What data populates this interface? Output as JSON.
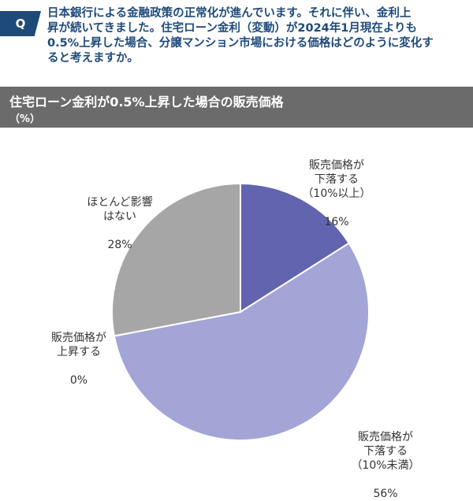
{
  "question": {
    "badge": "Q",
    "text": "日本銀行による金融政策の正常化が進んでいます。それに伴い、金利上\n昇が続いてきました。住宅ローン金利（変動）が2024年1月現在よりも\n0.5%上昇した場合、分譲マンション市場における価格はどのように変化す\nると考えますか。"
  },
  "colors": {
    "question": "#1e4a7a",
    "header_bg": "#6b6b6b",
    "slice_decline_10plus": "#6264b0",
    "slice_decline_under10": "#a2a5d6",
    "slice_rise": "#a2a5d6",
    "slice_no_effect": "#a6a6a6"
  },
  "chart_data": {
    "type": "pie",
    "title": "住宅ローン金利が0.5%上昇した場合の販売価格",
    "unit": "（%）",
    "slices": [
      {
        "label": "販売価格が\n下落する\n（10%以上）",
        "value": 16,
        "value_label": "16%"
      },
      {
        "label": "販売価格が\n下落する\n（10%未満）",
        "value": 56,
        "value_label": "56%"
      },
      {
        "label": "販売価格が\n上昇する",
        "value": 0,
        "value_label": "0%"
      },
      {
        "label": "ほとんど影響\nはない",
        "value": 28,
        "value_label": "28%"
      }
    ]
  }
}
